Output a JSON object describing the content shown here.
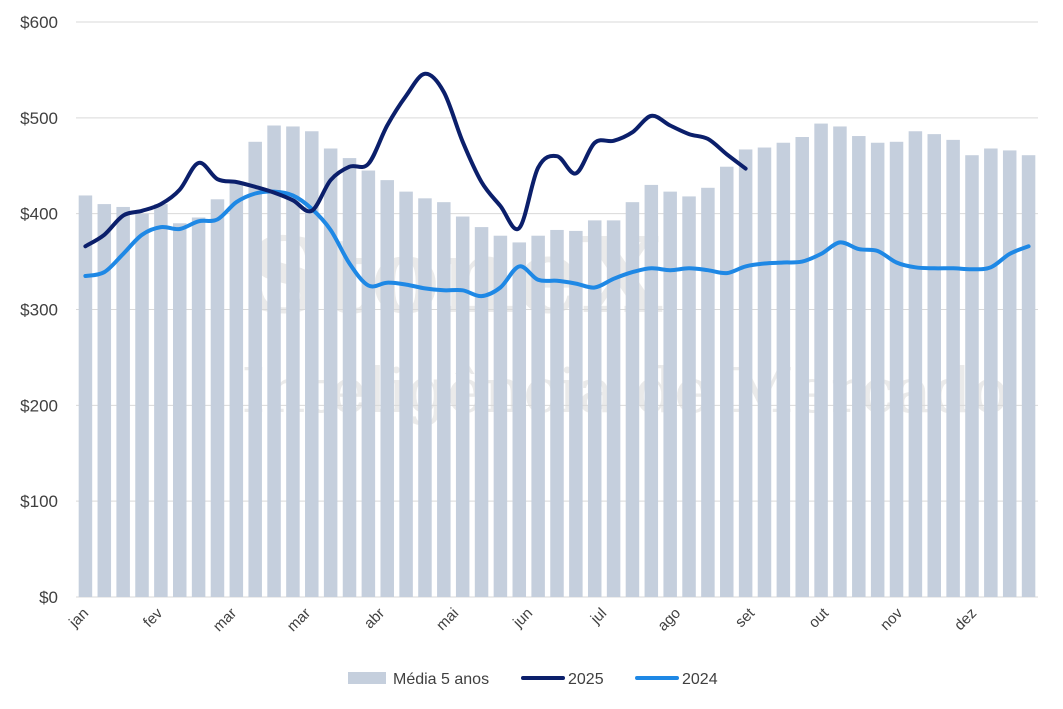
{
  "chart_data": {
    "type": "bar",
    "y_tick_labels": [
      "$0",
      "$100",
      "$200",
      "$300",
      "$400",
      "$500",
      "$600"
    ],
    "ylim": [
      0,
      600
    ],
    "grid": true,
    "legend_position": "bottom",
    "month_labels": [
      "jan",
      "fev",
      "mar",
      "mar",
      "abr",
      "mai",
      "jun",
      "jul",
      "ago",
      "set",
      "out",
      "nov",
      "dez"
    ],
    "watermark": {
      "brand": "StoneX",
      "tagline": "Inteligência de Mercado"
    },
    "colors": {
      "bars": "#c5cfdd",
      "s2025": "#0b1f6b",
      "s2024": "#1e88e5",
      "grid": "#d9d9d9"
    },
    "series": [
      {
        "name": "Média 5 anos",
        "type": "bar",
        "values": [
          419,
          410,
          407,
          400,
          410,
          390,
          396,
          415,
          432,
          475,
          492,
          491,
          486,
          468,
          458,
          445,
          435,
          423,
          416,
          412,
          397,
          386,
          377,
          370,
          377,
          383,
          382,
          393,
          393,
          412,
          430,
          423,
          418,
          427,
          449,
          467,
          469,
          474,
          480,
          494,
          491,
          481,
          474,
          475,
          486,
          483,
          477,
          461,
          468,
          466,
          461
        ]
      },
      {
        "name": "2025",
        "type": "line",
        "values": [
          366,
          378,
          398,
          403,
          410,
          425,
          453,
          436,
          433,
          428,
          422,
          414,
          403,
          435,
          449,
          452,
          492,
          523,
          546,
          527,
          475,
          433,
          408,
          385,
          448,
          460,
          442,
          474,
          476,
          485,
          502,
          492,
          483,
          478,
          462,
          447
        ]
      },
      {
        "name": "2024",
        "type": "line",
        "values": [
          335,
          339,
          358,
          378,
          386,
          384,
          392,
          394,
          412,
          421,
          423,
          419,
          405,
          383,
          348,
          325,
          328,
          326,
          322,
          320,
          320,
          314,
          323,
          345,
          331,
          330,
          327,
          323,
          332,
          339,
          343,
          341,
          343,
          341,
          338,
          345,
          348,
          349,
          350,
          358,
          370,
          363,
          361,
          349,
          344,
          343,
          343,
          342,
          344,
          358,
          366
        ]
      }
    ]
  }
}
